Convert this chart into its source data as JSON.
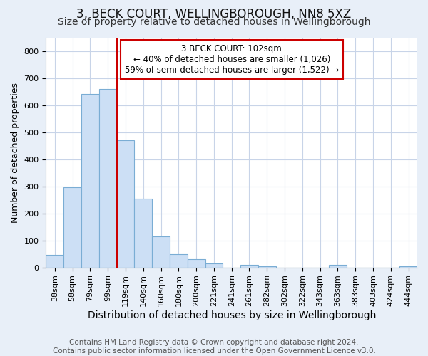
{
  "title": "3, BECK COURT, WELLINGBOROUGH, NN8 5XZ",
  "subtitle": "Size of property relative to detached houses in Wellingborough",
  "xlabel": "Distribution of detached houses by size in Wellingborough",
  "ylabel": "Number of detached properties",
  "categories": [
    "38sqm",
    "58sqm",
    "79sqm",
    "99sqm",
    "119sqm",
    "140sqm",
    "160sqm",
    "180sqm",
    "200sqm",
    "221sqm",
    "241sqm",
    "261sqm",
    "282sqm",
    "302sqm",
    "322sqm",
    "343sqm",
    "363sqm",
    "383sqm",
    "403sqm",
    "424sqm",
    "444sqm"
  ],
  "values": [
    45,
    295,
    640,
    660,
    470,
    255,
    115,
    50,
    30,
    15,
    0,
    10,
    5,
    0,
    0,
    0,
    10,
    0,
    0,
    0,
    5
  ],
  "bar_color": "#ccdff5",
  "bar_edge_color": "#7aadd4",
  "vline_x": 3.5,
  "vline_color": "#cc0000",
  "annotation_line1": "3 BECK COURT: 102sqm",
  "annotation_line2": "← 40% of detached houses are smaller (1,026)",
  "annotation_line3": "59% of semi-detached houses are larger (1,522) →",
  "annotation_box_facecolor": "#ffffff",
  "annotation_box_edgecolor": "#cc0000",
  "ylim": [
    0,
    850
  ],
  "yticks": [
    0,
    100,
    200,
    300,
    400,
    500,
    600,
    700,
    800
  ],
  "fig_bg_color": "#e8eff8",
  "plot_bg_color": "#ffffff",
  "grid_color": "#c8d4e8",
  "footer": "Contains HM Land Registry data © Crown copyright and database right 2024.\nContains public sector information licensed under the Open Government Licence v3.0.",
  "title_fontsize": 12,
  "subtitle_fontsize": 10,
  "xlabel_fontsize": 10,
  "ylabel_fontsize": 9,
  "tick_fontsize": 8,
  "annot_fontsize": 8.5,
  "footer_fontsize": 7.5
}
